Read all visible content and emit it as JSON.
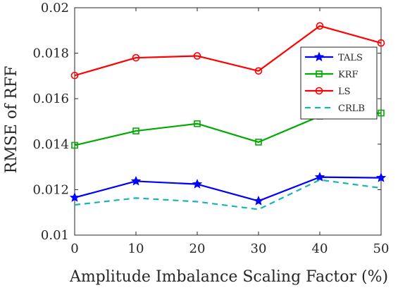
{
  "chart_data": {
    "type": "line",
    "title": "",
    "xlabel": "Amplitude Imbalance Scaling Factor (%)",
    "ylabel": "RMSE of RFF",
    "x": [
      0,
      10,
      20,
      30,
      40,
      50
    ],
    "xlim": [
      0,
      50
    ],
    "ylim": [
      0.01,
      0.02
    ],
    "xticks": [
      "0",
      "10",
      "20",
      "30",
      "40",
      "50"
    ],
    "yticks": [
      "0.01",
      "0.012",
      "0.014",
      "0.016",
      "0.018",
      "0.02"
    ],
    "grid": false,
    "legend_position": "top-right",
    "series": [
      {
        "name": "TALS",
        "values": [
          0.01165,
          0.01237,
          0.01224,
          0.0115,
          0.01255,
          0.01252
        ],
        "color": "#0000ff",
        "marker": "star",
        "line": "solid"
      },
      {
        "name": "KRF",
        "values": [
          0.01395,
          0.01458,
          0.0149,
          0.01409,
          0.01523,
          0.01537
        ],
        "color": "#00aa00",
        "marker": "square",
        "line": "solid"
      },
      {
        "name": "LS",
        "values": [
          0.01702,
          0.0178,
          0.01788,
          0.01722,
          0.0192,
          0.01845
        ],
        "color": "#ff0000",
        "marker": "circle",
        "line": "solid"
      },
      {
        "name": "CRLB",
        "values": [
          0.01133,
          0.01163,
          0.01147,
          0.01113,
          0.01243,
          0.01207
        ],
        "color": "#18b4b4",
        "marker": "none",
        "line": "dashed"
      }
    ]
  }
}
